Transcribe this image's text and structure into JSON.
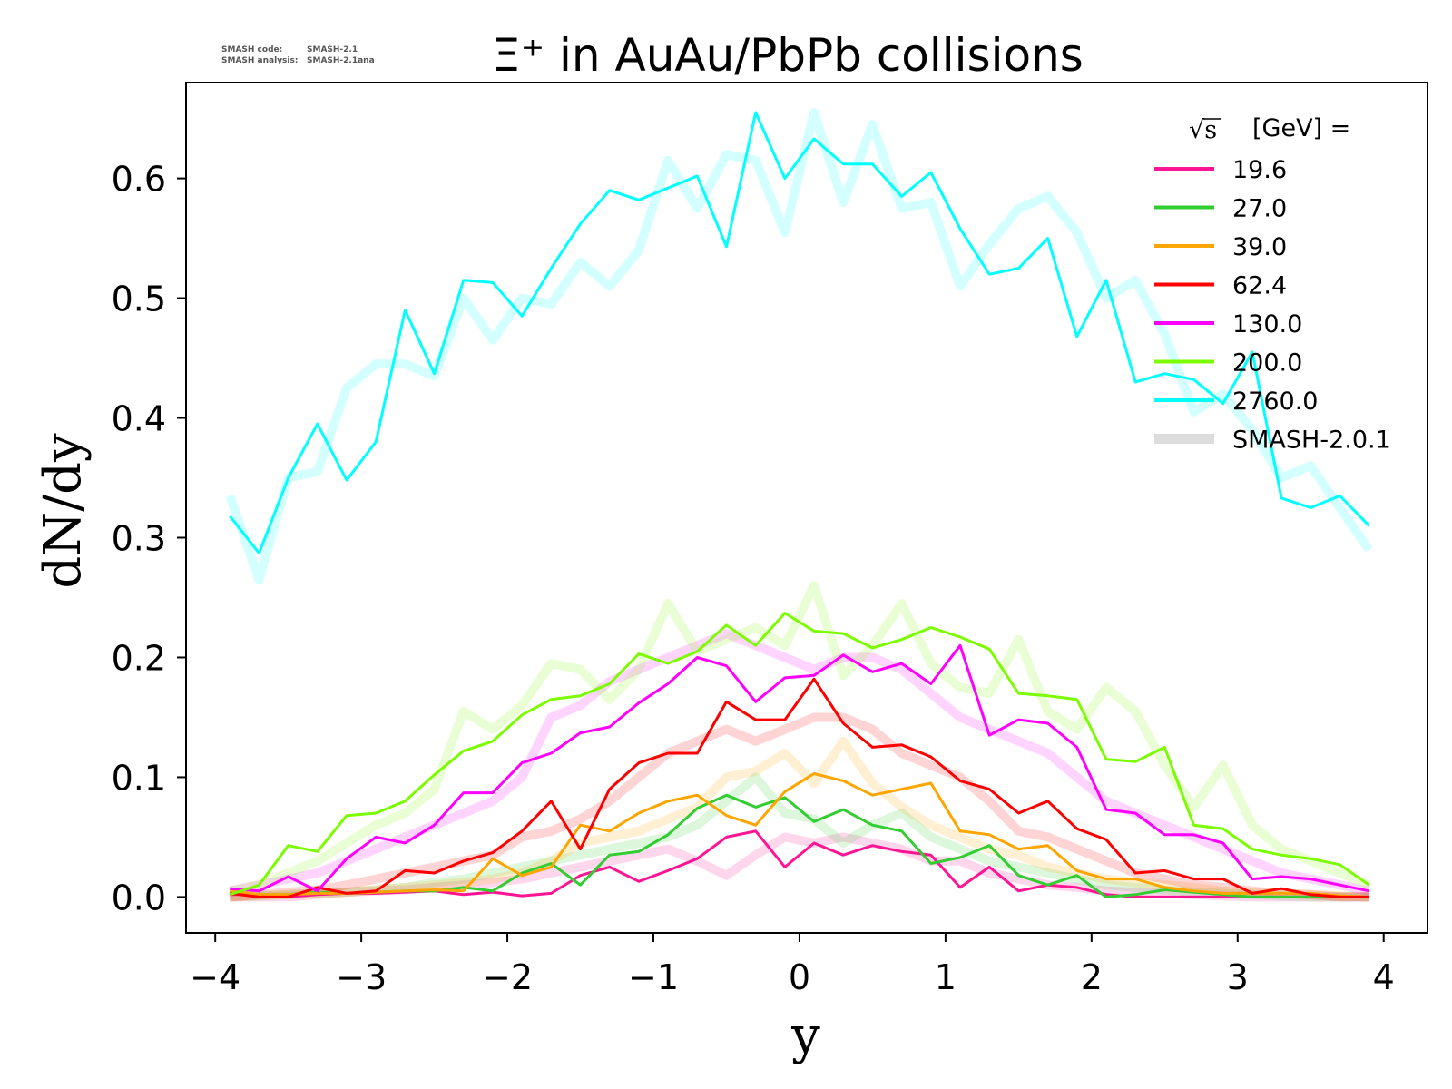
{
  "code_info": {
    "code_label": "SMASH code:",
    "code_value": "SMASH-2.1",
    "analysis_label": "SMASH analysis:",
    "analysis_value": "SMASH-2.1ana"
  },
  "chart_data": {
    "type": "line",
    "title": "Ξ⁺ in AuAu/PbPb collisions",
    "xlabel": "y",
    "ylabel": "dN/dy",
    "xlim": [
      -4.2,
      4.3
    ],
    "ylim": [
      -0.03,
      0.68
    ],
    "xticks": [
      -4,
      -3,
      -2,
      -1,
      0,
      1,
      2,
      3,
      4
    ],
    "xtick_labels": [
      "−4",
      "−3",
      "−2",
      "−1",
      "0",
      "1",
      "2",
      "3",
      "4"
    ],
    "yticks": [
      0.0,
      0.1,
      0.2,
      0.3,
      0.4,
      0.5,
      0.6
    ],
    "ytick_labels": [
      "0.0",
      "0.1",
      "0.2",
      "0.3",
      "0.4",
      "0.5",
      "0.6"
    ],
    "grid": false,
    "legend": {
      "placement": "top-right",
      "title": "[GeV] =",
      "title_symbol": "√s",
      "reference_label": "SMASH-2.0.1",
      "reference_color": "#dddddd"
    },
    "x": [
      -3.9,
      -3.7,
      -3.5,
      -3.3,
      -3.1,
      -2.9,
      -2.7,
      -2.5,
      -2.3,
      -2.1,
      -1.9,
      -1.7,
      -1.5,
      -1.3,
      -1.1,
      -0.9,
      -0.7,
      -0.5,
      -0.3,
      -0.1,
      0.1,
      0.3,
      0.5,
      0.7,
      0.9,
      1.1,
      1.3,
      1.5,
      1.7,
      1.9,
      2.1,
      2.3,
      2.5,
      2.7,
      2.9,
      3.1,
      3.3,
      3.5,
      3.7,
      3.9
    ],
    "series": [
      {
        "name": "19.6",
        "color": "#ff1493",
        "values": [
          0.002,
          0.002,
          0.0,
          0.002,
          0.003,
          0.003,
          0.004,
          0.005,
          0.002,
          0.004,
          0.001,
          0.003,
          0.018,
          0.025,
          0.013,
          0.022,
          0.032,
          0.05,
          0.055,
          0.025,
          0.045,
          0.035,
          0.043,
          0.038,
          0.035,
          0.008,
          0.025,
          0.005,
          0.01,
          0.008,
          0.002,
          0.0,
          0.0,
          0.0,
          0.0,
          0.0,
          0.0,
          0.0,
          0.0,
          0.0
        ],
        "reference": [
          0.0,
          0.0,
          0.0,
          0.002,
          0.004,
          0.005,
          0.006,
          0.008,
          0.01,
          0.012,
          0.015,
          0.02,
          0.025,
          0.03,
          0.035,
          0.04,
          0.03,
          0.018,
          0.035,
          0.05,
          0.045,
          0.05,
          0.045,
          0.04,
          0.03,
          0.03,
          0.02,
          0.015,
          0.01,
          0.008,
          0.005,
          0.004,
          0.003,
          0.002,
          0.001,
          0.0,
          0.0,
          0.0,
          0.0,
          0.0
        ]
      },
      {
        "name": "27.0",
        "color": "#32cd32",
        "values": [
          0.003,
          0.002,
          0.002,
          0.004,
          0.003,
          0.004,
          0.005,
          0.005,
          0.008,
          0.005,
          0.02,
          0.028,
          0.01,
          0.035,
          0.038,
          0.052,
          0.074,
          0.085,
          0.075,
          0.083,
          0.063,
          0.073,
          0.06,
          0.055,
          0.028,
          0.033,
          0.043,
          0.018,
          0.01,
          0.018,
          0.0,
          0.002,
          0.006,
          0.004,
          0.002,
          0.0,
          0.0,
          0.0,
          0.0,
          0.0
        ],
        "reference": [
          0.0,
          0.001,
          0.002,
          0.003,
          0.004,
          0.006,
          0.008,
          0.012,
          0.015,
          0.02,
          0.025,
          0.03,
          0.035,
          0.04,
          0.045,
          0.05,
          0.06,
          0.08,
          0.1,
          0.07,
          0.065,
          0.045,
          0.06,
          0.07,
          0.05,
          0.04,
          0.03,
          0.025,
          0.02,
          0.015,
          0.01,
          0.008,
          0.006,
          0.004,
          0.003,
          0.002,
          0.001,
          0.0,
          0.0,
          0.0
        ]
      },
      {
        "name": "39.0",
        "color": "#ffa500",
        "values": [
          0.005,
          0.002,
          0.002,
          0.003,
          0.003,
          0.004,
          0.005,
          0.006,
          0.005,
          0.032,
          0.018,
          0.025,
          0.06,
          0.055,
          0.07,
          0.08,
          0.085,
          0.068,
          0.06,
          0.088,
          0.103,
          0.097,
          0.085,
          0.09,
          0.095,
          0.055,
          0.052,
          0.04,
          0.043,
          0.022,
          0.015,
          0.015,
          0.008,
          0.005,
          0.003,
          0.003,
          0.003,
          0.003,
          0.001,
          0.0
        ],
        "reference": [
          0.0,
          0.001,
          0.002,
          0.003,
          0.004,
          0.006,
          0.008,
          0.01,
          0.012,
          0.015,
          0.02,
          0.03,
          0.045,
          0.05,
          0.055,
          0.065,
          0.075,
          0.1,
          0.105,
          0.12,
          0.095,
          0.13,
          0.095,
          0.075,
          0.06,
          0.05,
          0.04,
          0.035,
          0.025,
          0.02,
          0.015,
          0.012,
          0.01,
          0.008,
          0.005,
          0.004,
          0.003,
          0.002,
          0.001,
          0.0
        ]
      },
      {
        "name": "62.4",
        "color": "#ff0000",
        "values": [
          0.003,
          0.0,
          0.0,
          0.008,
          0.003,
          0.005,
          0.022,
          0.02,
          0.03,
          0.037,
          0.055,
          0.08,
          0.04,
          0.09,
          0.112,
          0.12,
          0.12,
          0.163,
          0.148,
          0.148,
          0.182,
          0.145,
          0.125,
          0.127,
          0.117,
          0.097,
          0.09,
          0.07,
          0.08,
          0.057,
          0.048,
          0.02,
          0.022,
          0.015,
          0.015,
          0.003,
          0.007,
          0.002,
          0.0,
          0.0
        ],
        "reference": [
          0.0,
          0.002,
          0.004,
          0.006,
          0.01,
          0.015,
          0.02,
          0.025,
          0.03,
          0.035,
          0.05,
          0.055,
          0.065,
          0.08,
          0.1,
          0.12,
          0.13,
          0.14,
          0.13,
          0.14,
          0.15,
          0.15,
          0.14,
          0.12,
          0.11,
          0.1,
          0.08,
          0.055,
          0.05,
          0.04,
          0.03,
          0.02,
          0.015,
          0.01,
          0.008,
          0.005,
          0.003,
          0.002,
          0.0,
          0.0
        ]
      },
      {
        "name": "130.0",
        "color": "#ff00ff",
        "values": [
          0.007,
          0.005,
          0.017,
          0.005,
          0.032,
          0.05,
          0.045,
          0.06,
          0.087,
          0.087,
          0.112,
          0.12,
          0.137,
          0.142,
          0.162,
          0.178,
          0.2,
          0.193,
          0.163,
          0.183,
          0.185,
          0.202,
          0.188,
          0.195,
          0.178,
          0.21,
          0.135,
          0.148,
          0.145,
          0.125,
          0.073,
          0.07,
          0.052,
          0.052,
          0.045,
          0.015,
          0.017,
          0.015,
          0.01,
          0.005
        ],
        "reference": [
          0.005,
          0.01,
          0.015,
          0.02,
          0.03,
          0.04,
          0.05,
          0.06,
          0.07,
          0.08,
          0.1,
          0.15,
          0.16,
          0.18,
          0.19,
          0.2,
          0.21,
          0.22,
          0.21,
          0.2,
          0.19,
          0.2,
          0.2,
          0.19,
          0.17,
          0.15,
          0.14,
          0.13,
          0.12,
          0.1,
          0.08,
          0.07,
          0.06,
          0.05,
          0.04,
          0.03,
          0.02,
          0.015,
          0.01,
          0.005
        ]
      },
      {
        "name": "200.0",
        "color": "#7cfc00",
        "values": [
          0.002,
          0.01,
          0.043,
          0.038,
          0.068,
          0.07,
          0.08,
          0.102,
          0.122,
          0.13,
          0.152,
          0.165,
          0.168,
          0.178,
          0.203,
          0.195,
          0.205,
          0.227,
          0.21,
          0.237,
          0.222,
          0.22,
          0.208,
          0.215,
          0.225,
          0.217,
          0.207,
          0.17,
          0.168,
          0.165,
          0.115,
          0.113,
          0.125,
          0.06,
          0.057,
          0.04,
          0.035,
          0.032,
          0.027,
          0.01
        ],
        "reference": [
          0.005,
          0.01,
          0.02,
          0.03,
          0.045,
          0.06,
          0.07,
          0.09,
          0.155,
          0.14,
          0.16,
          0.195,
          0.19,
          0.165,
          0.19,
          0.245,
          0.205,
          0.215,
          0.225,
          0.21,
          0.26,
          0.185,
          0.21,
          0.245,
          0.195,
          0.175,
          0.17,
          0.215,
          0.155,
          0.14,
          0.175,
          0.155,
          0.11,
          0.075,
          0.11,
          0.06,
          0.04,
          0.03,
          0.02,
          0.01
        ]
      },
      {
        "name": "2760.0",
        "color": "#00ffff",
        "values": [
          0.318,
          0.287,
          0.35,
          0.395,
          0.348,
          0.38,
          0.49,
          0.437,
          0.515,
          0.513,
          0.485,
          0.525,
          0.562,
          0.59,
          0.582,
          0.592,
          0.602,
          0.543,
          0.655,
          0.6,
          0.633,
          0.612,
          0.612,
          0.585,
          0.605,
          0.558,
          0.52,
          0.525,
          0.55,
          0.468,
          0.515,
          0.43,
          0.437,
          0.432,
          0.412,
          0.455,
          0.333,
          0.325,
          0.335,
          0.31
        ],
        "reference": [
          0.335,
          0.265,
          0.35,
          0.355,
          0.425,
          0.445,
          0.445,
          0.435,
          0.5,
          0.465,
          0.5,
          0.495,
          0.53,
          0.51,
          0.54,
          0.615,
          0.575,
          0.62,
          0.615,
          0.555,
          0.655,
          0.58,
          0.645,
          0.575,
          0.58,
          0.51,
          0.545,
          0.575,
          0.585,
          0.555,
          0.5,
          0.515,
          0.47,
          0.405,
          0.42,
          0.39,
          0.35,
          0.36,
          0.325,
          0.29
        ]
      }
    ]
  }
}
